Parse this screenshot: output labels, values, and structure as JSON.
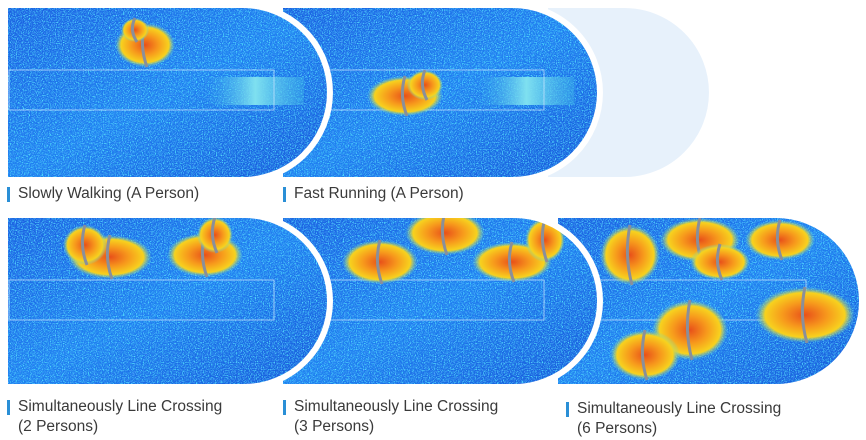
{
  "panels": [
    {
      "caption": [
        "Slowly Walking (A Person)"
      ]
    },
    {
      "caption": [
        "Fast Running (A Person)"
      ]
    },
    {
      "caption": [
        "Simultaneously Line Crossing",
        "(2 Persons)"
      ]
    },
    {
      "caption": [
        "Simultaneously Line Crossing",
        "(3 Persons)"
      ]
    },
    {
      "caption": [
        "Simultaneously Line Crossing",
        "(6 Persons)"
      ]
    }
  ]
}
